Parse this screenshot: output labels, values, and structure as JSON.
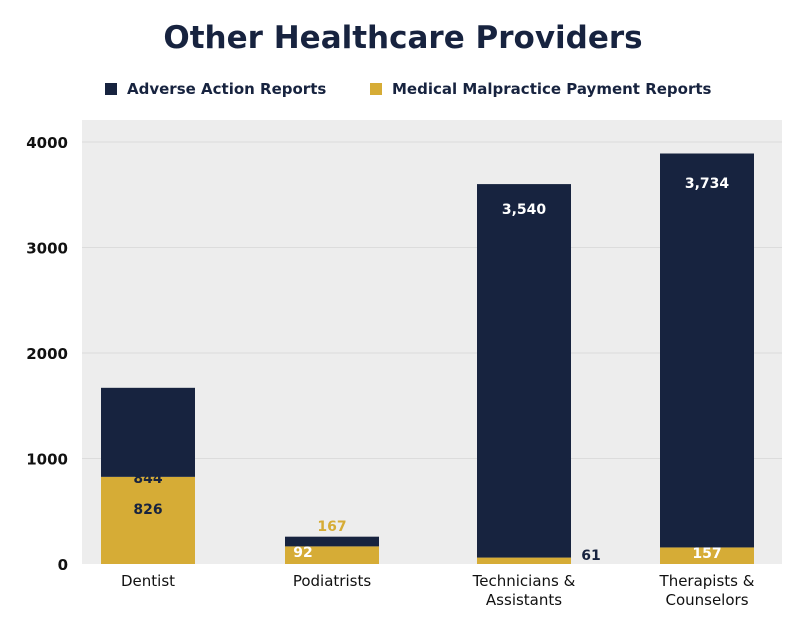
{
  "title": "Other Healthcare Providers",
  "colors": {
    "adverse": "#17233f",
    "malpractice": "#d6ac36",
    "plot_bg": "#ededed"
  },
  "chart_data": {
    "type": "bar",
    "stacked": true,
    "title": "Other Healthcare Providers",
    "xlabel": "",
    "ylabel": "",
    "ylim": [
      0,
      4000
    ],
    "yticks": [
      "0",
      "1000",
      "2000",
      "3000",
      "4000"
    ],
    "ytick_values": [
      0,
      1000,
      2000,
      3000,
      4000
    ],
    "grid": true,
    "legend": "top-center",
    "categories": [
      [
        "Dentist"
      ],
      [
        "Podiatrists"
      ],
      [
        "Technicians &",
        "Assistants"
      ],
      [
        "Therapists &",
        "Counselors"
      ]
    ],
    "series": [
      {
        "name": "Medical Malpractice Payment Reports",
        "key": "malpractice",
        "values": [
          826,
          167,
          61,
          157
        ],
        "labels": [
          "826",
          "167",
          "61",
          "157"
        ]
      },
      {
        "name": "Adverse Action Reports",
        "key": "adverse",
        "values": [
          844,
          92,
          3540,
          3734
        ],
        "labels": [
          "844",
          "92",
          "3,540",
          "3,734"
        ]
      }
    ]
  }
}
